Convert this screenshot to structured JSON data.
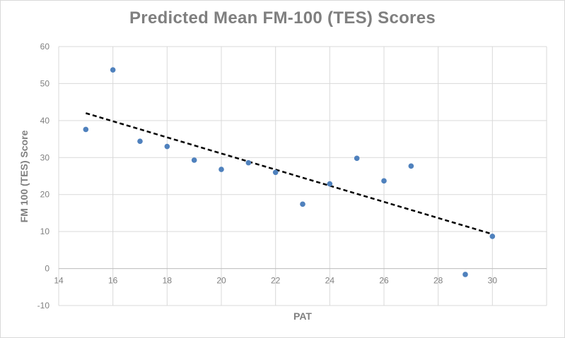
{
  "chart_data": {
    "type": "scatter",
    "title": "Predicted Mean FM-100 (TES) Scores",
    "xlabel": "PAT",
    "ylabel": "FM 100 (TES) Score",
    "xlim": [
      14,
      32
    ],
    "ylim": [
      -10,
      60
    ],
    "x_ticks": [
      14,
      16,
      18,
      20,
      22,
      24,
      26,
      28,
      30
    ],
    "y_ticks": [
      -10,
      0,
      10,
      20,
      30,
      40,
      50,
      60
    ],
    "grid": true,
    "legend": "none",
    "marker_color": "#4f81bd",
    "trendline_color": "#000000",
    "series": [
      {
        "x": [
          15,
          16,
          17,
          18,
          19,
          20,
          21,
          22,
          23,
          24,
          25,
          26,
          27,
          29,
          30
        ],
        "y": [
          37.6,
          53.7,
          34.4,
          33.0,
          29.3,
          26.8,
          28.6,
          26.0,
          17.4,
          22.9,
          29.8,
          23.7,
          27.7,
          -1.6,
          8.7
        ]
      }
    ],
    "trendline": {
      "type": "linear",
      "x": [
        15,
        30
      ],
      "y": [
        42.0,
        9.3
      ]
    }
  }
}
